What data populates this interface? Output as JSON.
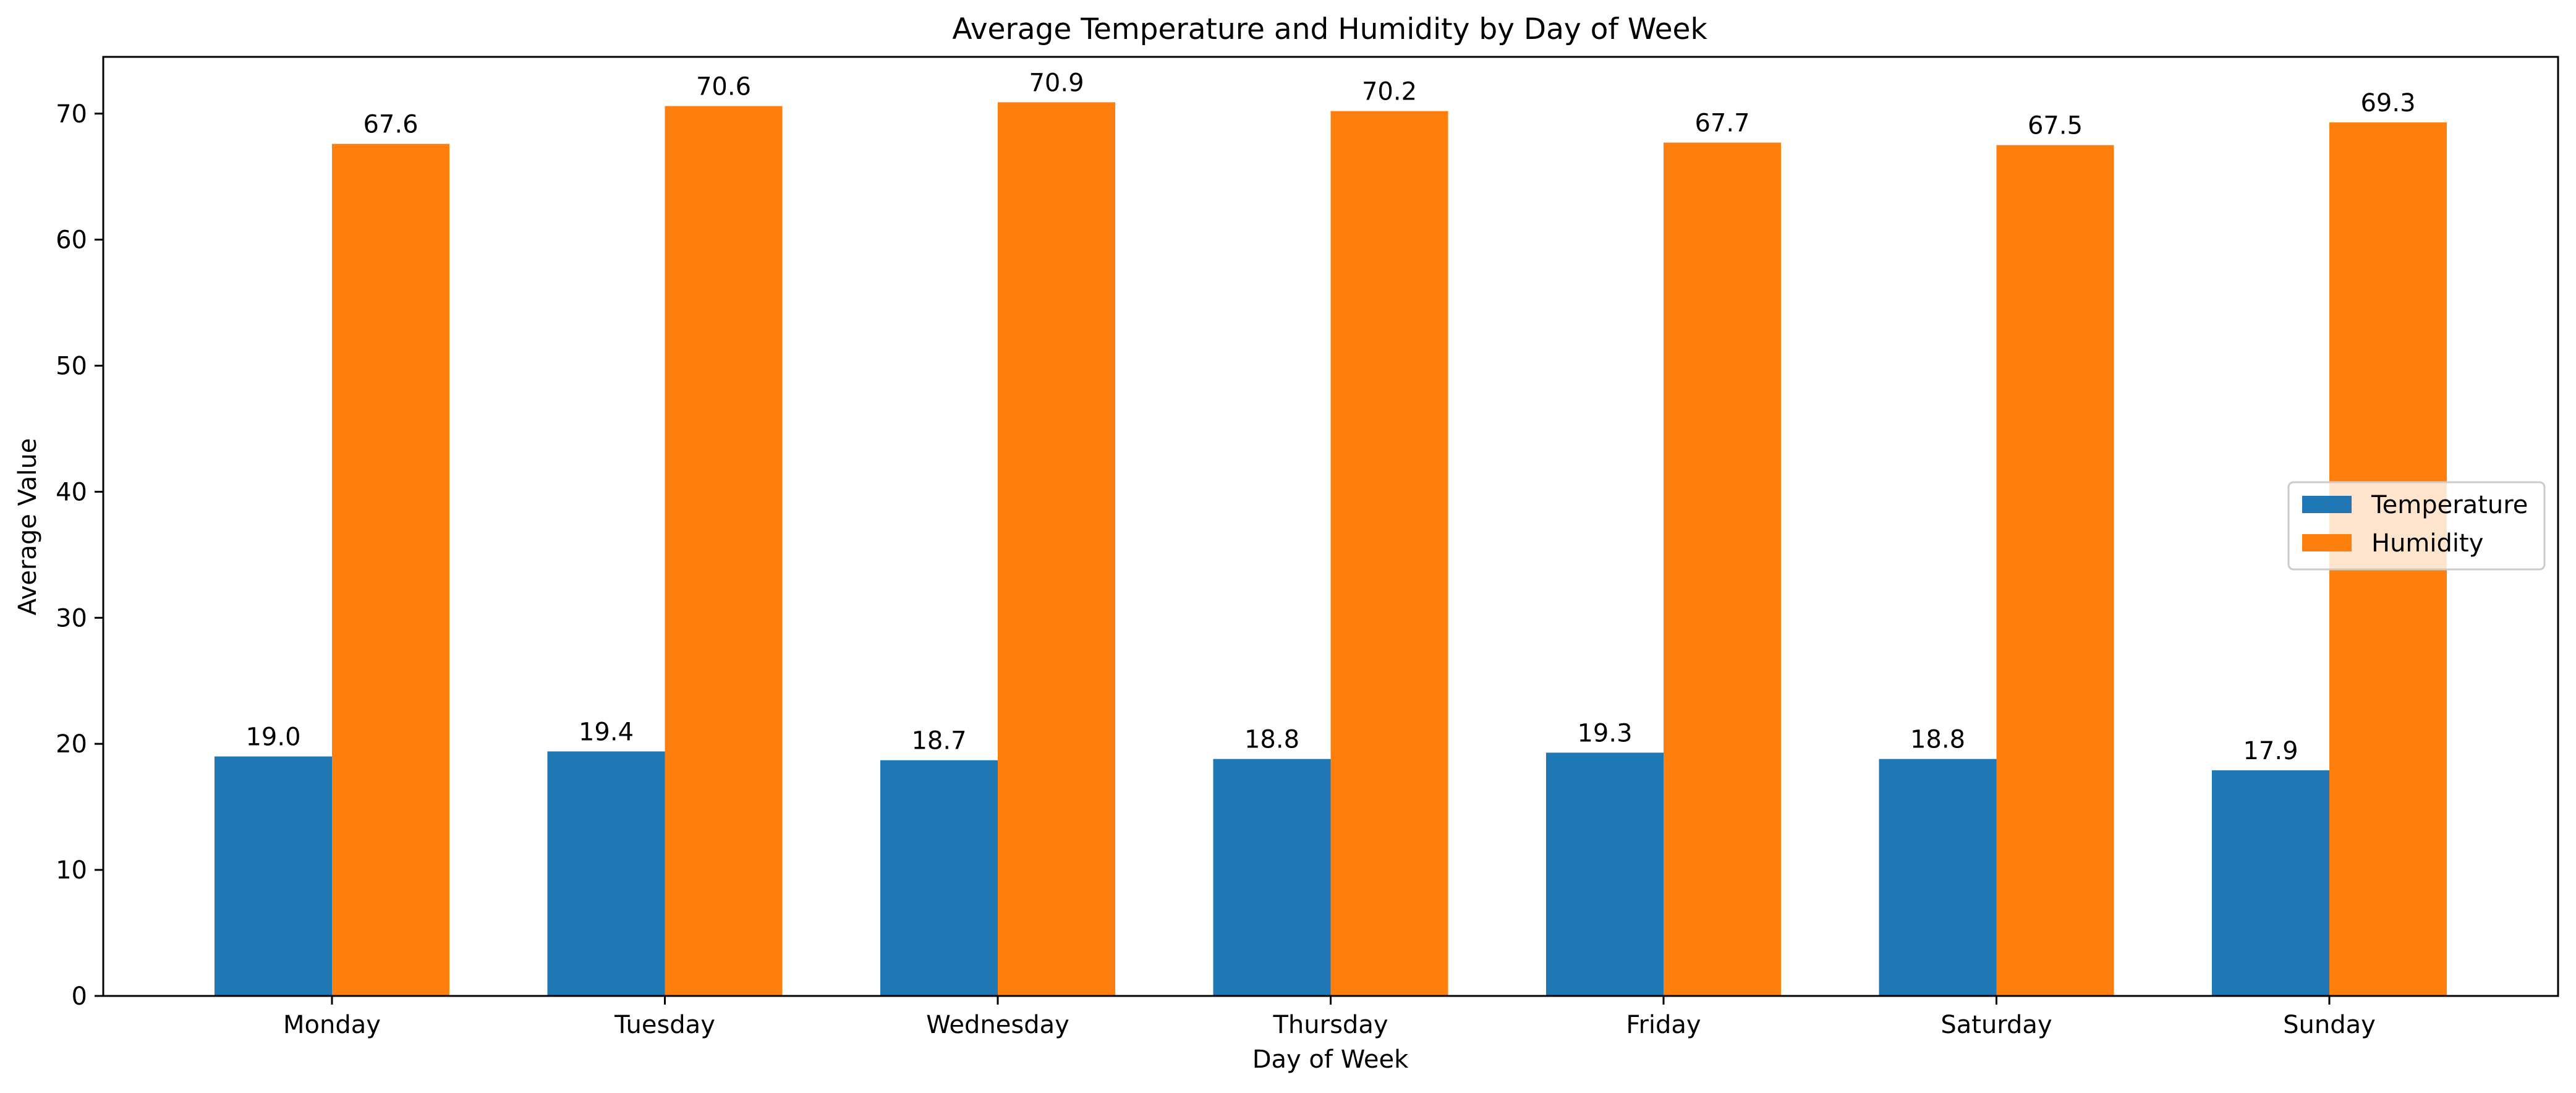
{
  "chart_data": {
    "type": "bar",
    "title": "Average Temperature and Humidity by Day of Week",
    "xlabel": "Day of Week",
    "ylabel": "Average Value",
    "categories": [
      "Monday",
      "Tuesday",
      "Wednesday",
      "Thursday",
      "Friday",
      "Saturday",
      "Sunday"
    ],
    "series": [
      {
        "name": "Temperature",
        "color": "#1f77b4",
        "values": [
          19.0,
          19.4,
          18.7,
          18.8,
          19.3,
          18.8,
          17.9
        ],
        "labels": [
          "19.0",
          "19.4",
          "18.7",
          "18.8",
          "19.3",
          "18.8",
          "17.9"
        ]
      },
      {
        "name": "Humidity",
        "color": "#ff7f0e",
        "values": [
          67.6,
          70.6,
          70.9,
          70.2,
          67.7,
          67.5,
          69.3
        ],
        "labels": [
          "67.6",
          "70.6",
          "70.9",
          "70.2",
          "67.7",
          "67.5",
          "69.3"
        ]
      }
    ],
    "ylim": [
      0,
      74.5
    ],
    "yticks": [
      0,
      10,
      20,
      30,
      40,
      50,
      60,
      70
    ],
    "grid": false,
    "legend_position": "center-right"
  }
}
